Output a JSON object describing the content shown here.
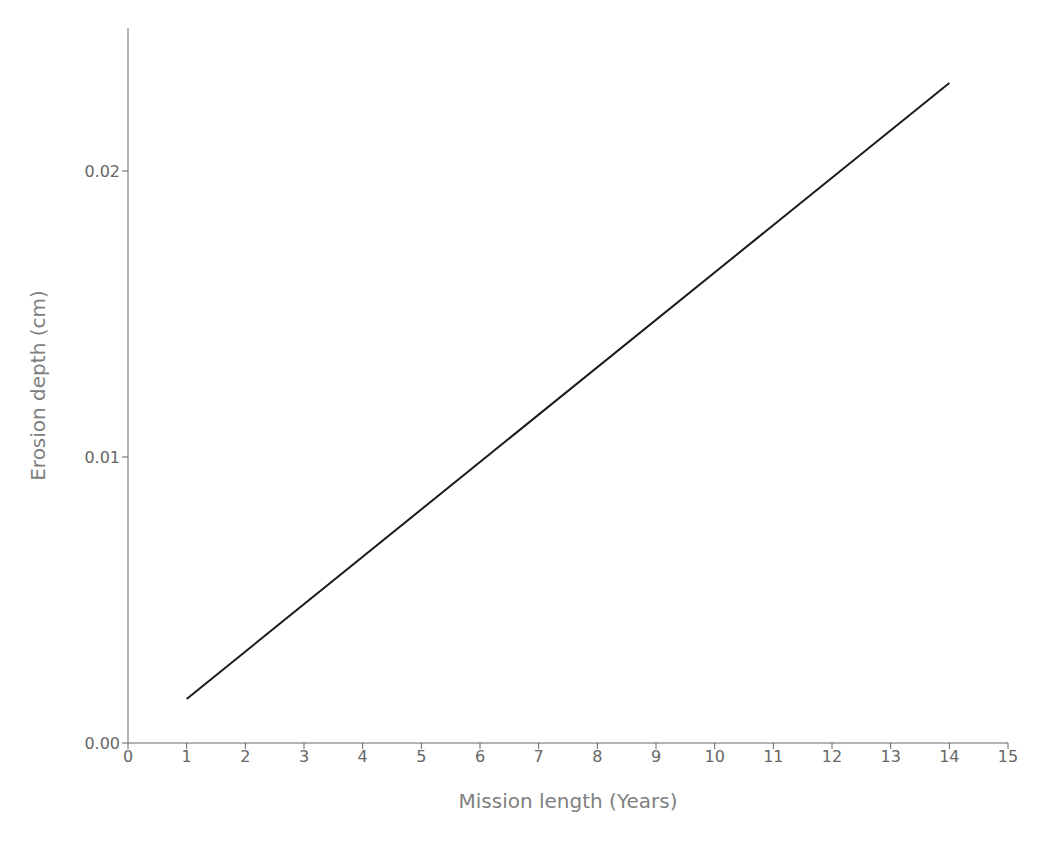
{
  "chart_data": {
    "type": "line",
    "x": [
      1,
      14
    ],
    "values": [
      0.00154,
      0.02308
    ],
    "xlim": [
      0,
      15
    ],
    "ylim": [
      0.0,
      0.025
    ],
    "xticks": [
      0,
      1,
      2,
      3,
      4,
      5,
      6,
      7,
      8,
      9,
      10,
      11,
      12,
      13,
      14,
      15
    ],
    "yticks": [
      {
        "value": 0,
        "label": "0.00"
      },
      0.01,
      0.02
    ],
    "xlabel": "Mission length (Years)",
    "ylabel": "Erosion depth (cm)",
    "color": "#1a1a1a"
  }
}
